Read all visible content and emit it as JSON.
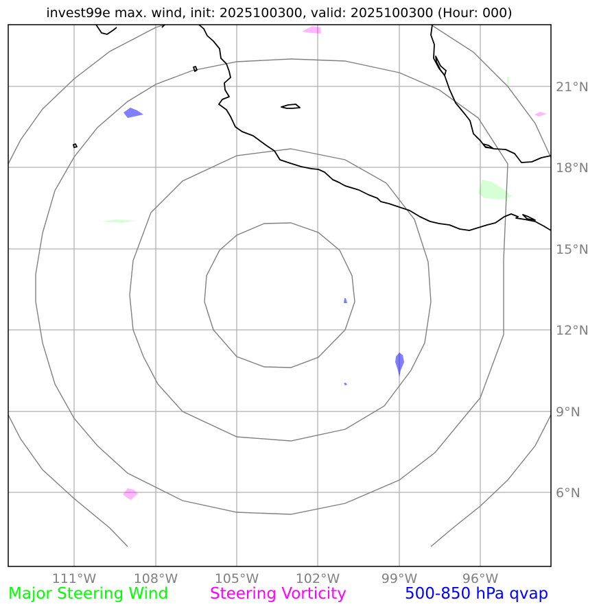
{
  "title": "invest99e max. wind, init: 2025100300, valid: 2025100300 (Hour: 000)",
  "lon_labels": [
    "111°W",
    "108°W",
    "105°W",
    "102°W",
    "99°W",
    "96°W"
  ],
  "lat_labels": [
    "21°N",
    "18°N",
    "15°N",
    "12°N",
    "9°N",
    "6°N"
  ],
  "legend": {
    "wind": "Major Steering Wind",
    "vorticity": "Steering Vorticity",
    "qvap": "500-850 hPa qvap"
  },
  "colors": {
    "wind": "#00ff00",
    "vorticity": "#ff00ff",
    "qvap": "#0000ff",
    "grid": "#b0b0b0",
    "rings": "#808080",
    "coast": "#000000"
  }
}
